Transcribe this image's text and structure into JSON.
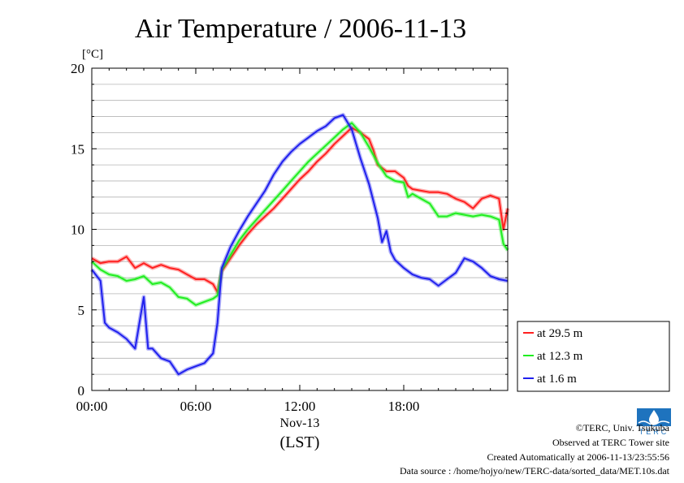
{
  "chart_data": {
    "type": "line",
    "title": "Air Temperature / 2006-11-13",
    "ylabel": "[°C]",
    "xlabel": "Nov-13",
    "xlabel2": "(LST)",
    "ylim": [
      0,
      20
    ],
    "xlim": [
      0,
      24
    ],
    "yticks": [
      0,
      5,
      10,
      15,
      20
    ],
    "xticks": [
      {
        "value": 0,
        "label": "00:00"
      },
      {
        "value": 6,
        "label": "06:00"
      },
      {
        "value": 12,
        "label": "12:00"
      },
      {
        "value": 18,
        "label": "18:00"
      }
    ],
    "grid": true,
    "legend_position": "right-bottom",
    "series": [
      {
        "name": "at 29.5 m",
        "color": "#ff2020",
        "x": [
          0,
          0.5,
          1,
          1.5,
          2,
          2.5,
          3,
          3.5,
          4,
          4.5,
          5,
          5.5,
          6,
          6.5,
          7,
          7.25,
          7.5,
          8,
          8.5,
          9,
          9.5,
          10,
          10.5,
          11,
          11.5,
          12,
          12.5,
          13,
          13.5,
          14,
          14.5,
          15,
          15.5,
          16,
          16.25,
          16.5,
          17,
          17.5,
          18,
          18.25,
          18.5,
          19,
          19.5,
          20,
          20.5,
          21,
          21.5,
          22,
          22.5,
          23,
          23.5,
          23.75,
          24
        ],
        "y": [
          8.2,
          7.9,
          8.0,
          8.0,
          8.3,
          7.6,
          7.9,
          7.6,
          7.8,
          7.6,
          7.5,
          7.2,
          6.9,
          6.9,
          6.6,
          6.1,
          7.4,
          8.2,
          9.0,
          9.7,
          10.3,
          10.8,
          11.3,
          11.9,
          12.5,
          13.1,
          13.6,
          14.2,
          14.7,
          15.3,
          15.8,
          16.3,
          16.0,
          15.6,
          14.9,
          14.0,
          13.6,
          13.6,
          13.2,
          12.7,
          12.5,
          12.4,
          12.3,
          12.3,
          12.2,
          11.9,
          11.7,
          11.3,
          11.9,
          12.1,
          11.9,
          10.0,
          11.3
        ]
      },
      {
        "name": "at 12.3 m",
        "color": "#20ee20",
        "x": [
          0,
          0.5,
          1,
          1.5,
          2,
          2.5,
          3,
          3.5,
          4,
          4.5,
          5,
          5.5,
          6,
          6.5,
          7,
          7.25,
          7.5,
          8,
          8.5,
          9,
          9.5,
          10,
          10.5,
          11,
          11.5,
          12,
          12.5,
          13,
          13.5,
          14,
          14.5,
          15,
          15.5,
          16,
          16.25,
          16.5,
          17,
          17.5,
          18,
          18.25,
          18.5,
          19,
          19.5,
          20,
          20.5,
          21,
          21.5,
          22,
          22.5,
          23,
          23.5,
          23.75,
          24
        ],
        "y": [
          8.0,
          7.5,
          7.2,
          7.1,
          6.8,
          6.9,
          7.1,
          6.6,
          6.7,
          6.4,
          5.8,
          5.7,
          5.3,
          5.5,
          5.7,
          5.9,
          7.5,
          8.4,
          9.3,
          10.0,
          10.6,
          11.2,
          11.8,
          12.4,
          13.0,
          13.6,
          14.2,
          14.7,
          15.2,
          15.7,
          16.2,
          16.6,
          16.0,
          15.1,
          14.6,
          14.1,
          13.3,
          13.0,
          12.9,
          12.0,
          12.2,
          11.9,
          11.6,
          10.8,
          10.8,
          11.0,
          10.9,
          10.8,
          10.9,
          10.8,
          10.6,
          9.1,
          8.7
        ]
      },
      {
        "name": "at 1.6 m",
        "color": "#2020ee",
        "x": [
          0,
          0.5,
          0.75,
          1,
          1.5,
          2,
          2.5,
          3,
          3.25,
          3.5,
          4,
          4.5,
          5,
          5.5,
          6,
          6.5,
          7,
          7.25,
          7.5,
          8,
          8.5,
          9,
          9.5,
          10,
          10.5,
          11,
          11.5,
          12,
          12.5,
          13,
          13.5,
          14,
          14.5,
          15,
          15.5,
          16,
          16.5,
          16.75,
          17,
          17.25,
          17.5,
          18,
          18.5,
          19,
          19.5,
          20,
          20.5,
          21,
          21.5,
          22,
          22.5,
          23,
          23.5,
          24
        ],
        "y": [
          7.5,
          6.8,
          4.2,
          3.9,
          3.6,
          3.2,
          2.6,
          5.8,
          2.6,
          2.6,
          2.0,
          1.8,
          1.0,
          1.3,
          1.5,
          1.7,
          2.3,
          4.2,
          7.6,
          8.9,
          9.9,
          10.8,
          11.6,
          12.4,
          13.4,
          14.2,
          14.8,
          15.3,
          15.7,
          16.1,
          16.4,
          16.9,
          17.1,
          16.2,
          14.4,
          12.8,
          10.7,
          9.2,
          9.9,
          8.6,
          8.1,
          7.6,
          7.2,
          7.0,
          6.9,
          6.5,
          6.9,
          7.3,
          8.2,
          8.0,
          7.6,
          7.1,
          6.9,
          6.8
        ]
      }
    ]
  },
  "footer": {
    "copyright": "©TERC, Univ. Tsukuba",
    "observed": "Observed at TERC Tower site",
    "created": "Created Automatically at 2006-11-13/23:55:56",
    "source": "Data source : /home/hojyo/new/TERC-data/sorted_data/MET.10s.dat"
  },
  "logo": {
    "icon": "terc-logo-icon",
    "text": "TERC",
    "color": "#1e73be"
  }
}
